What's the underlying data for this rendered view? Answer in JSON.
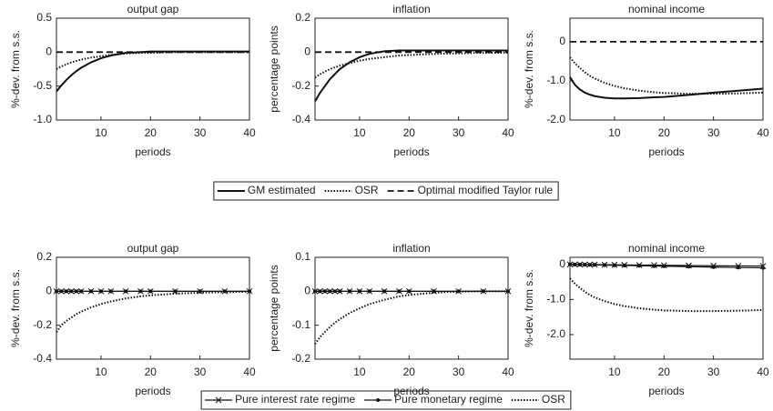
{
  "chart_data": [
    {
      "type": "line",
      "title": "output gap",
      "xlabel": "periods",
      "ylabel": "%-dev. from s.s.",
      "x": [
        1,
        2,
        3,
        4,
        5,
        6,
        8,
        10,
        12,
        15,
        18,
        20,
        25,
        30,
        35,
        40
      ],
      "xlim": [
        1,
        40
      ],
      "xticks": [
        10,
        20,
        30,
        40
      ],
      "ylim": [
        -1,
        0.5
      ],
      "yticks": [
        {
          "value": -1,
          "label": "-1.0"
        },
        -0.5,
        0,
        0.5
      ],
      "legend": "bottom",
      "series": [
        {
          "name": "GM estimated",
          "color": "#111111",
          "dash": "solid",
          "values": [
            -0.58,
            -0.49,
            -0.41,
            -0.34,
            -0.28,
            -0.23,
            -0.15,
            -0.09,
            -0.05,
            -0.01,
            0,
            0.01,
            0.01,
            0.01,
            0.01,
            0.01
          ]
        },
        {
          "name": "OSR",
          "color": "#111111",
          "dash": "dotted",
          "values": [
            -0.25,
            -0.21,
            -0.18,
            -0.15,
            -0.13,
            -0.11,
            -0.08,
            -0.06,
            -0.04,
            -0.02,
            -0.01,
            -0.01,
            0,
            0,
            0,
            0
          ]
        },
        {
          "name": "Optimal modified Taylor rule",
          "color": "#111111",
          "dash": "dashed",
          "values": [
            0,
            0,
            0,
            0,
            0,
            0,
            0,
            0,
            0,
            0,
            0,
            0,
            0,
            0,
            0,
            0
          ]
        }
      ]
    },
    {
      "type": "line",
      "title": "inflation",
      "xlabel": "periods",
      "ylabel": "percentage points",
      "x": [
        1,
        2,
        3,
        4,
        5,
        6,
        8,
        10,
        12,
        15,
        18,
        20,
        25,
        30,
        35,
        40
      ],
      "xlim": [
        1,
        40
      ],
      "xticks": [
        10,
        20,
        30,
        40
      ],
      "ylim": [
        -0.4,
        0.2
      ],
      "yticks": [
        -0.4,
        -0.2,
        0,
        0.2
      ],
      "series": [
        {
          "name": "GM estimated",
          "color": "#111111",
          "dash": "solid",
          "values": [
            -0.29,
            -0.24,
            -0.2,
            -0.16,
            -0.13,
            -0.1,
            -0.06,
            -0.03,
            -0.01,
            0.005,
            0.01,
            0.01,
            0.01,
            0.01,
            0.01,
            0.01
          ]
        },
        {
          "name": "OSR",
          "color": "#111111",
          "dash": "dotted",
          "values": [
            -0.15,
            -0.13,
            -0.115,
            -0.1,
            -0.09,
            -0.08,
            -0.065,
            -0.05,
            -0.04,
            -0.03,
            -0.02,
            -0.017,
            -0.01,
            -0.007,
            -0.004,
            -0.003
          ]
        },
        {
          "name": "Optimal modified Taylor rule",
          "color": "#111111",
          "dash": "dashed",
          "values": [
            0,
            0,
            0,
            0,
            0,
            0,
            0,
            0,
            0,
            0,
            0,
            0,
            0,
            0,
            0,
            0
          ]
        }
      ]
    },
    {
      "type": "line",
      "title": "nominal income",
      "xlabel": "periods",
      "ylabel": "%-dev. from s.s.",
      "x": [
        1,
        2,
        3,
        4,
        5,
        6,
        8,
        10,
        12,
        15,
        18,
        20,
        25,
        30,
        35,
        40
      ],
      "xlim": [
        1,
        40
      ],
      "xticks": [
        10,
        20,
        30,
        40
      ],
      "ylim": [
        -2,
        0.6
      ],
      "yticks": [
        {
          "value": -2,
          "label": "-2.0"
        },
        {
          "value": -1,
          "label": "-1.0"
        },
        0
      ],
      "series": [
        {
          "name": "GM estimated",
          "color": "#111111",
          "dash": "solid",
          "values": [
            -0.9,
            -1.1,
            -1.22,
            -1.3,
            -1.35,
            -1.39,
            -1.43,
            -1.45,
            -1.45,
            -1.44,
            -1.42,
            -1.41,
            -1.36,
            -1.3,
            -1.25,
            -1.2
          ]
        },
        {
          "name": "OSR",
          "color": "#111111",
          "dash": "dotted",
          "values": [
            -0.4,
            -0.55,
            -0.67,
            -0.78,
            -0.87,
            -0.94,
            -1.05,
            -1.13,
            -1.19,
            -1.25,
            -1.29,
            -1.31,
            -1.33,
            -1.33,
            -1.32,
            -1.3
          ]
        },
        {
          "name": "Optimal modified Taylor rule",
          "color": "#111111",
          "dash": "dashed",
          "values": [
            0,
            0,
            0,
            0,
            0,
            0,
            0,
            0,
            0,
            0,
            0,
            0,
            0,
            0,
            0,
            0
          ]
        }
      ]
    },
    {
      "type": "line",
      "title": "output gap",
      "xlabel": "periods",
      "ylabel": "%-dev. from s.s.",
      "x": [
        1,
        2,
        3,
        4,
        5,
        6,
        8,
        10,
        12,
        15,
        18,
        20,
        25,
        30,
        35,
        40
      ],
      "xlim": [
        1,
        40
      ],
      "xticks": [
        10,
        20,
        30,
        40
      ],
      "ylim": [
        -0.4,
        0.2
      ],
      "yticks": [
        -0.4,
        -0.2,
        0,
        0.2
      ],
      "legend": "bottom",
      "series": [
        {
          "name": "Pure interest rate regime",
          "color": "#111111",
          "dash": "solid",
          "marker": "x",
          "values": [
            0,
            0,
            0,
            0,
            0,
            0,
            0,
            0,
            0,
            0,
            0,
            0,
            0,
            0,
            0,
            0
          ]
        },
        {
          "name": "Pure monetary regime",
          "color": "#111111",
          "dash": "solid",
          "marker": "dot",
          "values": [
            0,
            0,
            0,
            0,
            0,
            0,
            0,
            0,
            0,
            0,
            0,
            0,
            0,
            0,
            0,
            0
          ]
        },
        {
          "name": "OSR",
          "color": "#111111",
          "dash": "dotted",
          "values": [
            -0.24,
            -0.2,
            -0.175,
            -0.155,
            -0.135,
            -0.12,
            -0.095,
            -0.075,
            -0.06,
            -0.042,
            -0.03,
            -0.024,
            -0.014,
            -0.008,
            -0.005,
            -0.003
          ]
        }
      ]
    },
    {
      "type": "line",
      "title": "inflation",
      "xlabel": "periods",
      "ylabel": "percentage points",
      "x": [
        1,
        2,
        3,
        4,
        5,
        6,
        8,
        10,
        12,
        15,
        18,
        20,
        25,
        30,
        35,
        40
      ],
      "xlim": [
        1,
        40
      ],
      "xticks": [
        10,
        20,
        30,
        40
      ],
      "ylim": [
        -0.2,
        0.1
      ],
      "yticks": [
        -0.2,
        -0.1,
        0,
        0.1
      ],
      "series": [
        {
          "name": "Pure interest rate regime",
          "color": "#111111",
          "dash": "solid",
          "marker": "x",
          "values": [
            0,
            0,
            0,
            0,
            0,
            0,
            0,
            0,
            0,
            0,
            0,
            0,
            0,
            0,
            0,
            0
          ]
        },
        {
          "name": "Pure monetary regime",
          "color": "#111111",
          "dash": "solid",
          "marker": "dot",
          "values": [
            0,
            0,
            0,
            0,
            0,
            0,
            0,
            0,
            0,
            0,
            0,
            0,
            0,
            0,
            0,
            0
          ]
        },
        {
          "name": "OSR",
          "color": "#111111",
          "dash": "dotted",
          "values": [
            -0.155,
            -0.135,
            -0.12,
            -0.105,
            -0.093,
            -0.082,
            -0.064,
            -0.05,
            -0.038,
            -0.025,
            -0.015,
            -0.011,
            -0.004,
            -0.001,
            0,
            0
          ]
        }
      ]
    },
    {
      "type": "line",
      "title": "nominal income",
      "xlabel": "periods",
      "ylabel": "%-dev. from s.s.",
      "x": [
        1,
        2,
        3,
        4,
        5,
        6,
        8,
        10,
        12,
        15,
        18,
        20,
        25,
        30,
        35,
        40
      ],
      "xlim": [
        1,
        40
      ],
      "xticks": [
        10,
        20,
        30,
        40
      ],
      "ylim": [
        -2.7,
        0.2
      ],
      "yticks": [
        {
          "value": -2,
          "label": "-2.0"
        },
        {
          "value": -1,
          "label": "-1.0"
        },
        0
      ],
      "series": [
        {
          "name": "Pure interest rate regime",
          "color": "#111111",
          "dash": "solid",
          "marker": "x",
          "values": [
            0,
            -0.002,
            -0.004,
            -0.005,
            -0.007,
            -0.008,
            -0.01,
            -0.013,
            -0.016,
            -0.02,
            -0.024,
            -0.027,
            -0.033,
            -0.04,
            -0.045,
            -0.05
          ]
        },
        {
          "name": "Pure monetary regime",
          "color": "#111111",
          "dash": "solid",
          "marker": "dot",
          "values": [
            0,
            -0.003,
            -0.006,
            -0.009,
            -0.012,
            -0.015,
            -0.02,
            -0.026,
            -0.032,
            -0.04,
            -0.048,
            -0.053,
            -0.066,
            -0.078,
            -0.09,
            -0.1
          ]
        },
        {
          "name": "OSR",
          "color": "#111111",
          "dash": "dotted",
          "values": [
            -0.4,
            -0.55,
            -0.67,
            -0.78,
            -0.87,
            -0.94,
            -1.05,
            -1.13,
            -1.19,
            -1.25,
            -1.29,
            -1.31,
            -1.33,
            -1.33,
            -1.32,
            -1.3
          ]
        }
      ]
    }
  ]
}
